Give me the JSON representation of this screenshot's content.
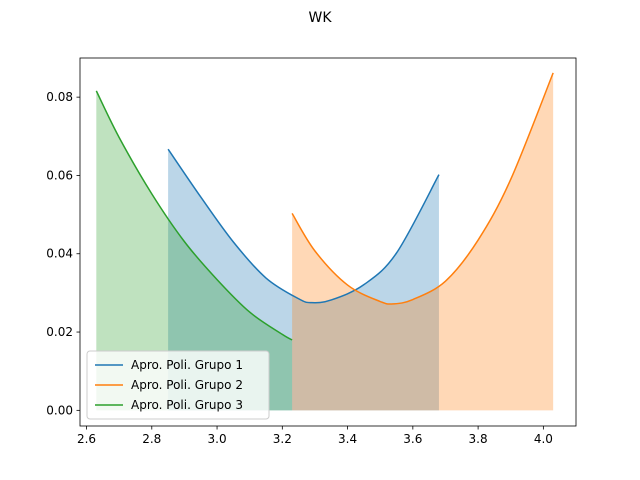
{
  "chart_data": {
    "type": "line",
    "title": "WK",
    "xlabel": "",
    "ylabel": "",
    "xlim": [
      2.58,
      4.1
    ],
    "ylim": [
      -0.004,
      0.09
    ],
    "xticks": [
      2.6,
      2.8,
      3.0,
      3.2,
      3.4,
      3.6,
      3.8,
      4.0
    ],
    "yticks": [
      0.0,
      0.02,
      0.04,
      0.06,
      0.08
    ],
    "xtick_labels": [
      "2.6",
      "2.8",
      "3.0",
      "3.2",
      "3.4",
      "3.6",
      "3.8",
      "4.0"
    ],
    "ytick_labels": [
      "0.00",
      "0.02",
      "0.04",
      "0.06",
      "0.08"
    ],
    "grid": false,
    "legend_position": "lower-left",
    "series": [
      {
        "name": "Apro. Poli. Grupo 1",
        "color": "#1f77b4",
        "fill": true,
        "x": [
          2.85,
          2.95,
          3.05,
          3.15,
          3.25,
          3.29,
          3.35,
          3.45,
          3.55,
          3.68
        ],
        "y": [
          0.0667,
          0.0545,
          0.043,
          0.0338,
          0.0285,
          0.0275,
          0.0282,
          0.0321,
          0.0402,
          0.0602
        ]
      },
      {
        "name": "Apro. Poli. Grupo 2",
        "color": "#ff7f0e",
        "fill": true,
        "x": [
          3.23,
          3.3,
          3.4,
          3.5,
          3.54,
          3.6,
          3.7,
          3.8,
          3.9,
          4.03
        ],
        "y": [
          0.0503,
          0.0407,
          0.032,
          0.0278,
          0.0272,
          0.0283,
          0.033,
          0.0435,
          0.059,
          0.0862
        ]
      },
      {
        "name": "Apro. Poli. Grupo 3",
        "color": "#2ca02c",
        "fill": true,
        "x": [
          2.63,
          2.7,
          2.8,
          2.9,
          3.0,
          3.1,
          3.2,
          3.23
        ],
        "y": [
          0.0816,
          0.0697,
          0.0553,
          0.0431,
          0.0334,
          0.0251,
          0.0194,
          0.018
        ]
      }
    ]
  }
}
